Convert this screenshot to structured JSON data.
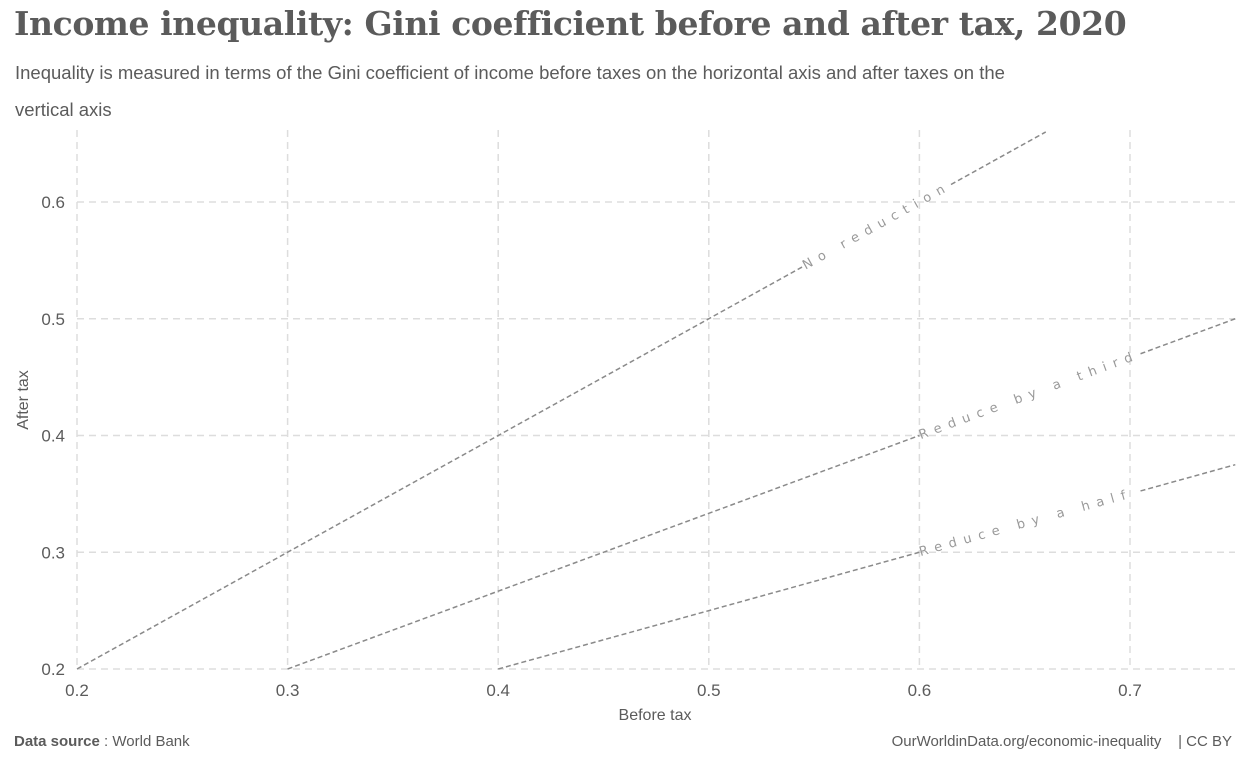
{
  "title": "Income inequality: Gini coefficient before and after tax, 2020",
  "subtitle": "Inequality is measured in terms of the Gini coefficient of income before taxes on the horizontal axis and after taxes on the vertical axis",
  "footer": {
    "source_label": "Data source",
    "source_sep": " : ",
    "source_value": "World Bank",
    "url": "OurWorldinData.org/economic-inequality",
    "license": "| CC BY"
  },
  "chart_data": {
    "type": "line",
    "title": "Income inequality: Gini coefficient before and after tax, 2020",
    "xlabel": "Before tax",
    "ylabel": "After tax",
    "xlim": [
      0.2,
      0.75
    ],
    "ylim": [
      0.2,
      0.66
    ],
    "xticks": [
      0.2,
      0.3,
      0.4,
      0.5,
      0.6,
      0.7
    ],
    "xtick_labels": [
      "0.2",
      "0.3",
      "0.4",
      "0.5",
      "0.6",
      "0.7"
    ],
    "yticks": [
      0.2,
      0.3,
      0.4,
      0.5,
      0.6
    ],
    "ytick_labels": [
      "0.2",
      "0.3",
      "0.4",
      "0.5",
      "0.6"
    ],
    "grid": true,
    "series": [
      {
        "name": "No reduction",
        "slope": 1.0,
        "x": [
          0.2,
          0.66
        ],
        "y": [
          0.2,
          0.66
        ]
      },
      {
        "name": "Reduce by a third",
        "slope": 0.6667,
        "x": [
          0.3,
          0.75
        ],
        "y": [
          0.2,
          0.5
        ]
      },
      {
        "name": "Reduce by a half",
        "slope": 0.5,
        "x": [
          0.4,
          0.75
        ],
        "y": [
          0.2,
          0.375
        ]
      }
    ],
    "colors": {
      "reference_line": "#8a8a8a",
      "grid": "#dddddd",
      "label": "#9a9a9a"
    }
  }
}
